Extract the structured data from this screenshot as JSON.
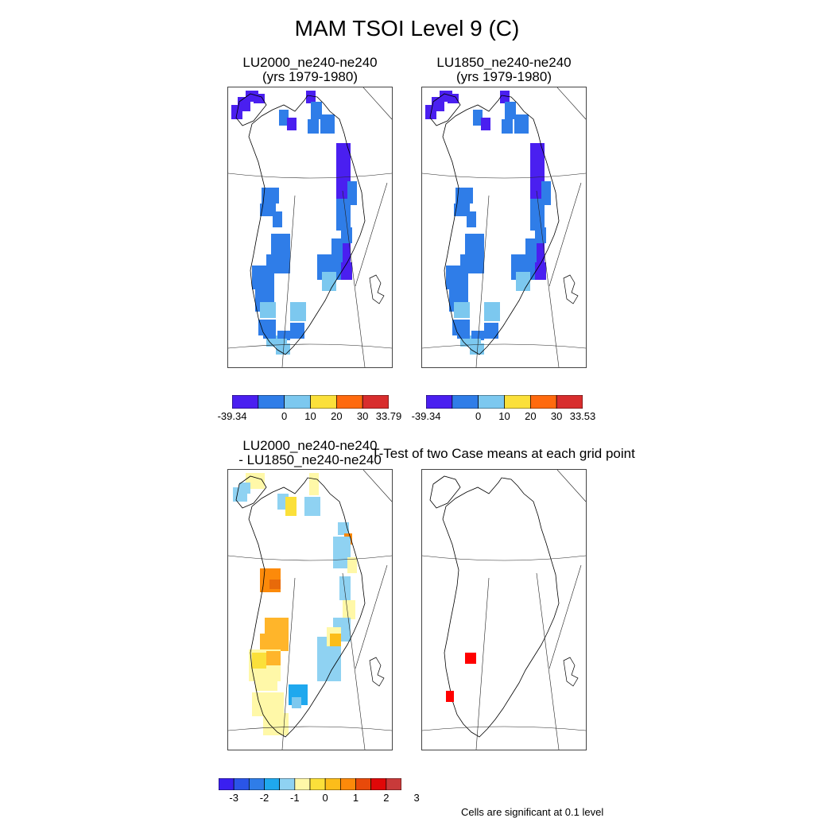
{
  "title": "MAM TSOI Level 9 (C)",
  "panels": [
    {
      "id": "p1",
      "title_line1": "LU2000_ne240-ne240",
      "title_line2": "(yrs 1979-1980)"
    },
    {
      "id": "p2",
      "title_line1": "LU1850_ne240-ne240",
      "title_line2": "(yrs 1979-1980)"
    },
    {
      "id": "p3",
      "title_line1": "LU2000_ne240-ne240",
      "title_line2": "- LU1850_ne240-ne240"
    },
    {
      "id": "p4",
      "title_line1": "T-Test of two Case means at each grid point",
      "title_line2": ""
    }
  ],
  "colorbars": {
    "cb1": {
      "colors": [
        "#4a1ff0",
        "#2f7de8",
        "#7cc8ef",
        "#fbe03a",
        "#ff6a0e",
        "#d82d2d"
      ],
      "labels": [
        "-39.34",
        "0",
        "10",
        "20",
        "30",
        "33.79"
      ]
    },
    "cb2": {
      "colors": [
        "#4a1ff0",
        "#2f7de8",
        "#7cc8ef",
        "#fbe03a",
        "#ff6a0e",
        "#d82d2d"
      ],
      "labels": [
        "-39.34",
        "0",
        "10",
        "20",
        "30",
        "33.53"
      ]
    },
    "cb3": {
      "colors": [
        "#3a1ff0",
        "#2a55e8",
        "#2f7de8",
        "#1fa8ee",
        "#8fd2f2",
        "#fff8a8",
        "#fbe03a",
        "#fcbd1a",
        "#fc8a0a",
        "#e84a0a",
        "#e00808",
        "#c83a3a"
      ],
      "labels": [
        "-3",
        "-2",
        "-1",
        "0",
        "1",
        "2",
        "3"
      ]
    }
  },
  "note": "Cells are significant at 0.1 level",
  "chart_data": [
    {
      "type": "heatmap",
      "title": "LU2000_ne240-ne240 (yrs 1979-1980)",
      "region": "Greenland",
      "units": "C",
      "range": [
        -39.34,
        33.79
      ],
      "contour_levels": [
        0,
        10,
        20,
        30
      ],
      "dominant_bins": [
        "-39.34 to 0"
      ]
    },
    {
      "type": "heatmap",
      "title": "LU1850_ne240-ne240 (yrs 1979-1980)",
      "region": "Greenland",
      "units": "C",
      "range": [
        -39.34,
        33.53
      ],
      "contour_levels": [
        0,
        10,
        20,
        30
      ],
      "dominant_bins": [
        "-39.34 to 0"
      ]
    },
    {
      "type": "heatmap",
      "title": "LU2000_ne240-ne240 - LU1850_ne240-ne240",
      "region": "Greenland",
      "units": "C",
      "contour_levels": [
        -3,
        -2,
        -1,
        0,
        1,
        2,
        3
      ],
      "value_range_approx": [
        -1.5,
        2.5
      ]
    },
    {
      "type": "heatmap",
      "title": "T-Test of two Case means at each grid point",
      "region": "Greenland",
      "significant_cells": 2,
      "significance_level": 0.1
    }
  ]
}
